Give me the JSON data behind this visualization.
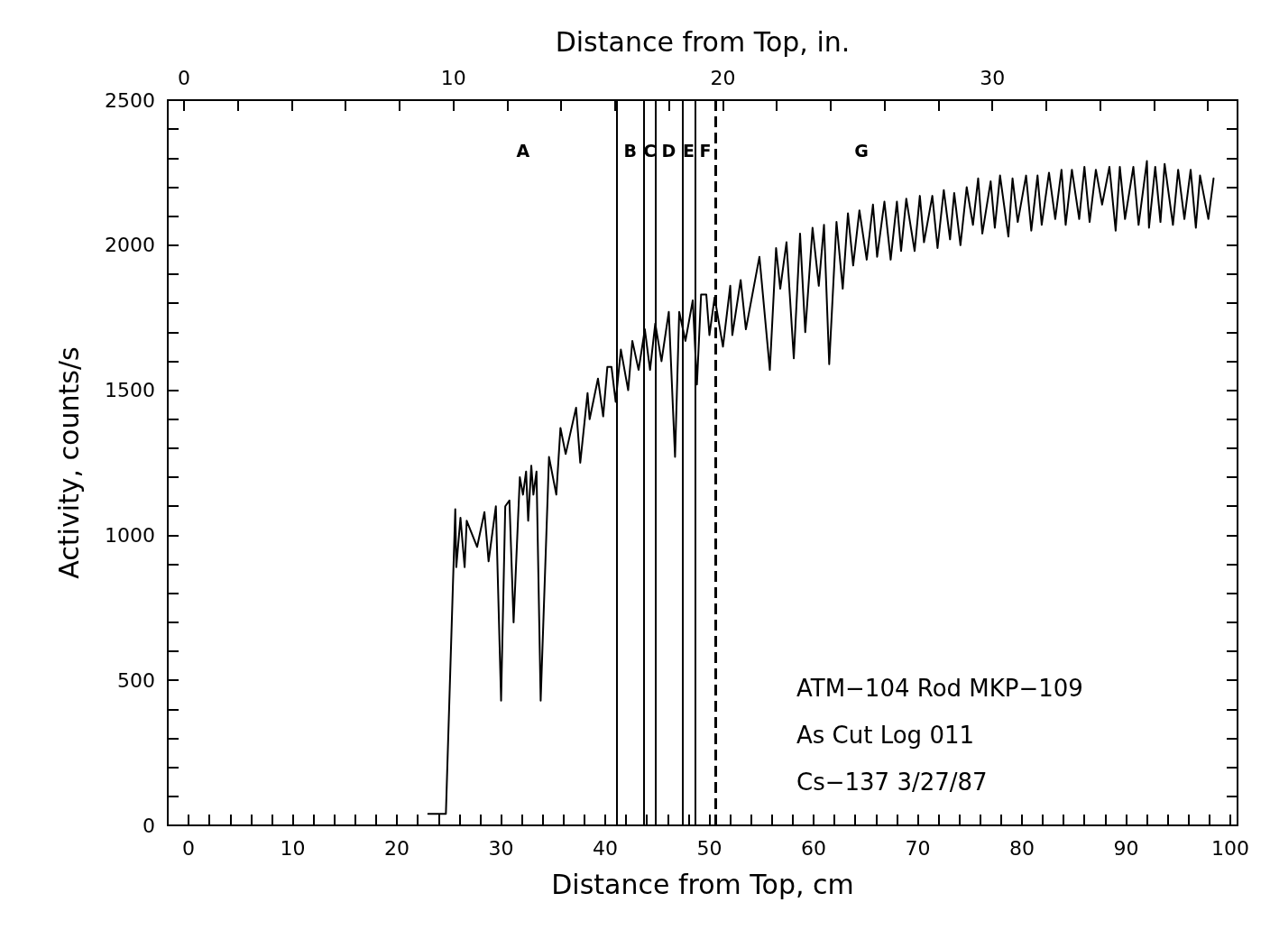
{
  "chart_data": {
    "type": "line",
    "xlabel": "Distance from Top, cm",
    "x2label": "Distance from Top, in.",
    "ylabel": "Activity, counts/s",
    "xlim": [
      -2,
      100.7
    ],
    "x2lim": [
      -0.6,
      39.1
    ],
    "ylim": [
      0,
      2500
    ],
    "xticks": [
      0,
      {
        "value": 2,
        "label": null
      },
      {
        "value": 4,
        "label": null
      },
      {
        "value": 6,
        "label": null
      },
      {
        "value": 8,
        "label": null
      },
      10,
      {
        "value": 12,
        "label": null
      },
      {
        "value": 14,
        "label": null
      },
      {
        "value": 16,
        "label": null
      },
      {
        "value": 18,
        "label": null
      },
      20,
      {
        "value": 22,
        "label": null
      },
      {
        "value": 24,
        "label": null
      },
      {
        "value": 26,
        "label": null
      },
      {
        "value": 28,
        "label": null
      },
      30,
      {
        "value": 32,
        "label": null
      },
      {
        "value": 34,
        "label": null
      },
      {
        "value": 36,
        "label": null
      },
      {
        "value": 38,
        "label": null
      },
      40,
      {
        "value": 42,
        "label": null
      },
      {
        "value": 44,
        "label": null
      },
      {
        "value": 46,
        "label": null
      },
      {
        "value": 48,
        "label": null
      },
      50,
      {
        "value": 52,
        "label": null
      },
      {
        "value": 54,
        "label": null
      },
      {
        "value": 56,
        "label": null
      },
      {
        "value": 58,
        "label": null
      },
      60,
      {
        "value": 62,
        "label": null
      },
      {
        "value": 64,
        "label": null
      },
      {
        "value": 66,
        "label": null
      },
      {
        "value": 68,
        "label": null
      },
      70,
      {
        "value": 72,
        "label": null
      },
      {
        "value": 74,
        "label": null
      },
      {
        "value": 76,
        "label": null
      },
      {
        "value": 78,
        "label": null
      },
      80,
      {
        "value": 82,
        "label": null
      },
      {
        "value": 84,
        "label": null
      },
      {
        "value": 86,
        "label": null
      },
      {
        "value": 88,
        "label": null
      },
      90,
      {
        "value": 92,
        "label": null
      },
      {
        "value": 94,
        "label": null
      },
      {
        "value": 96,
        "label": null
      },
      {
        "value": 98,
        "label": null
      },
      100
    ],
    "x2ticks": [
      0,
      {
        "value": 2,
        "label": null
      },
      {
        "value": 4,
        "label": null
      },
      {
        "value": 6,
        "label": null
      },
      {
        "value": 8,
        "label": null
      },
      10,
      {
        "value": 12,
        "label": null
      },
      {
        "value": 14,
        "label": null
      },
      {
        "value": 16,
        "label": null
      },
      {
        "value": 18,
        "label": null
      },
      20,
      {
        "value": 22,
        "label": null
      },
      {
        "value": 24,
        "label": null
      },
      {
        "value": 26,
        "label": null
      },
      {
        "value": 28,
        "label": null
      },
      30,
      {
        "value": 32,
        "label": null
      },
      {
        "value": 34,
        "label": null
      },
      {
        "value": 36,
        "label": null
      },
      {
        "value": 38,
        "label": null
      }
    ],
    "yticks": [
      0,
      {
        "value": 100,
        "label": null
      },
      {
        "value": 200,
        "label": null
      },
      {
        "value": 300,
        "label": null
      },
      {
        "value": 400,
        "label": null
      },
      500,
      {
        "value": 600,
        "label": null
      },
      {
        "value": 700,
        "label": null
      },
      {
        "value": 800,
        "label": null
      },
      {
        "value": 900,
        "label": null
      },
      1000,
      {
        "value": 1100,
        "label": null
      },
      {
        "value": 1200,
        "label": null
      },
      {
        "value": 1300,
        "label": null
      },
      {
        "value": 1400,
        "label": null
      },
      1500,
      {
        "value": 1600,
        "label": null
      },
      {
        "value": 1700,
        "label": null
      },
      {
        "value": 1800,
        "label": null
      },
      {
        "value": 1900,
        "label": null
      },
      2000,
      {
        "value": 2100,
        "label": null
      },
      {
        "value": 2200,
        "label": null
      },
      {
        "value": 2300,
        "label": null
      },
      {
        "value": 2400,
        "label": null
      },
      2500
    ],
    "grid": false,
    "marker": "none",
    "line_style": "solid",
    "series": [
      {
        "color": "#000000",
        "x": [
          23.0,
          24.7,
          25.6,
          25.7,
          26.1,
          26.5,
          26.7,
          27.7,
          28.4,
          28.8,
          29.5,
          30.0,
          30.4,
          30.8,
          31.2,
          31.8,
          32.1,
          32.4,
          32.6,
          32.9,
          33.1,
          33.4,
          33.8,
          34.6,
          35.3,
          35.7,
          36.2,
          37.2,
          37.6,
          38.3,
          38.5,
          39.3,
          39.8,
          40.2,
          40.6,
          41.0,
          41.5,
          42.2,
          42.6,
          43.2,
          43.8,
          44.3,
          44.8,
          45.4,
          46.1,
          46.7,
          47.1,
          47.7,
          48.4,
          48.8,
          49.2,
          49.7,
          50.0,
          50.5,
          51.3,
          52.0,
          52.2,
          53.0,
          53.5,
          54.8,
          55.8,
          56.4,
          56.8,
          57.4,
          58.1,
          58.7,
          59.2,
          59.9,
          60.5,
          61.0,
          61.5,
          62.2,
          62.8,
          63.3,
          63.8,
          64.4,
          65.1,
          65.7,
          66.1,
          66.8,
          67.4,
          68.0,
          68.4,
          68.9,
          69.7,
          70.2,
          70.6,
          71.4,
          71.9,
          72.5,
          73.1,
          73.5,
          74.1,
          74.7,
          75.3,
          75.8,
          76.2,
          77.0,
          77.4,
          77.9,
          78.7,
          79.1,
          79.6,
          80.4,
          80.9,
          81.5,
          81.9,
          82.6,
          83.2,
          83.8,
          84.2,
          84.8,
          85.5,
          86.0,
          86.5,
          87.1,
          87.7,
          88.4,
          89.0,
          89.4,
          89.9,
          90.7,
          91.2,
          92.0,
          92.2,
          92.8,
          93.3,
          93.7,
          94.5,
          95.0,
          95.6,
          96.2,
          96.7,
          97.1,
          97.9,
          98.4
        ],
        "values": [
          40,
          40,
          1090,
          890,
          1060,
          890,
          1050,
          960,
          1080,
          910,
          1100,
          430,
          1100,
          1120,
          700,
          1200,
          1140,
          1220,
          1050,
          1240,
          1140,
          1220,
          430,
          1270,
          1140,
          1370,
          1280,
          1440,
          1250,
          1490,
          1400,
          1540,
          1410,
          1580,
          1580,
          1460,
          1640,
          1500,
          1670,
          1570,
          1710,
          1570,
          1730,
          1600,
          1770,
          1270,
          1770,
          1670,
          1810,
          1520,
          1830,
          1830,
          1690,
          1820,
          1650,
          1860,
          1690,
          1880,
          1710,
          1960,
          1570,
          1990,
          1850,
          2010,
          1610,
          2040,
          1700,
          2060,
          1860,
          2070,
          1590,
          2080,
          1850,
          2110,
          1930,
          2120,
          1950,
          2140,
          1960,
          2150,
          1950,
          2150,
          1980,
          2160,
          1980,
          2170,
          2010,
          2170,
          1990,
          2190,
          2020,
          2180,
          2000,
          2200,
          2070,
          2230,
          2040,
          2220,
          2060,
          2240,
          2030,
          2230,
          2080,
          2240,
          2050,
          2240,
          2070,
          2250,
          2090,
          2260,
          2070,
          2260,
          2090,
          2270,
          2080,
          2260,
          2140,
          2270,
          2050,
          2270,
          2090,
          2270,
          2070,
          2290,
          2060,
          2270,
          2080,
          2280,
          2070,
          2260,
          2090,
          2260,
          2060,
          2240,
          2090,
          2230
        ]
      }
    ],
    "ref_lines": [
      {
        "axis": "x",
        "value": 41.1
      },
      {
        "axis": "x",
        "value": 43.7
      },
      {
        "axis": "x",
        "value": 44.8
      },
      {
        "axis": "x",
        "value": 47.4
      },
      {
        "axis": "x",
        "value": 48.6
      },
      {
        "axis": "x",
        "value": 50.6,
        "line_style": "dashed"
      }
    ],
    "annotations": [
      "A",
      "B",
      "C",
      "D",
      "E",
      "F",
      "G",
      "ATM−104 Rod MKP−109",
      "As Cut Log 011",
      "Cs−137 3/27/87"
    ]
  }
}
